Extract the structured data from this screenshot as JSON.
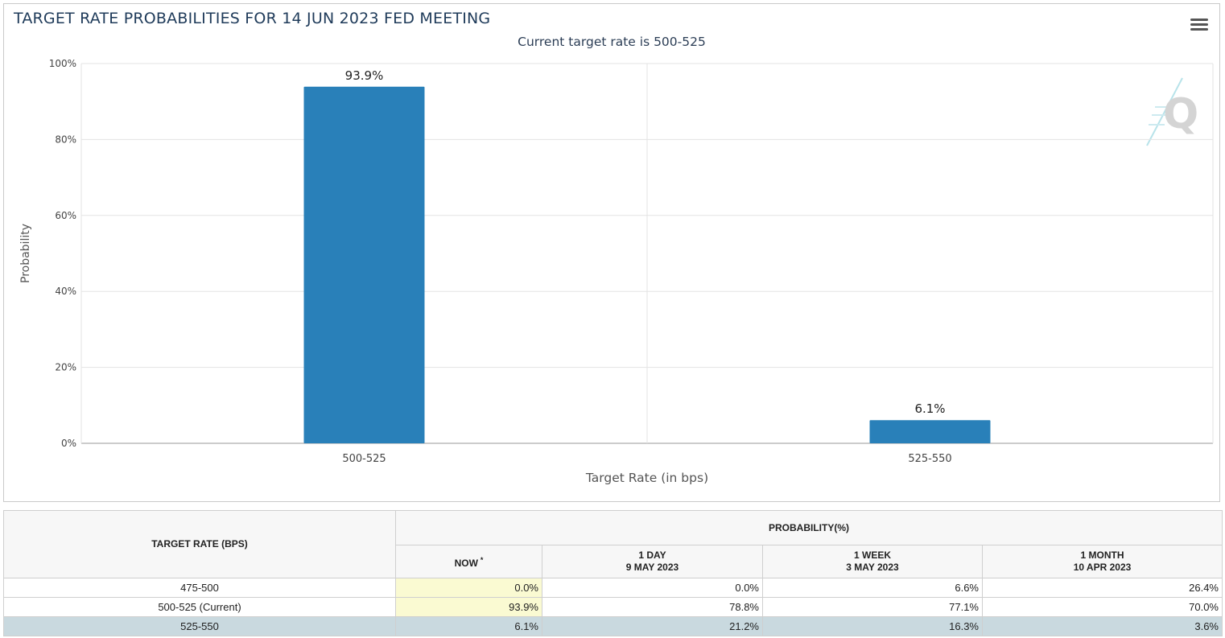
{
  "chart": {
    "title": "TARGET RATE PROBABILITIES FOR 14 JUN 2023 FED MEETING",
    "subtitle": "Current target rate is 500-525",
    "menu_icon": "hamburger-menu-icon",
    "watermark_icon": "q-logo-icon"
  },
  "chart_data": {
    "type": "bar",
    "title": "TARGET RATE PROBABILITIES FOR 14 JUN 2023 FED MEETING",
    "subtitle": "Current target rate is 500-525",
    "categories": [
      "500-525",
      "525-550"
    ],
    "values": [
      93.9,
      6.1
    ],
    "data_labels": [
      "93.9%",
      "6.1%"
    ],
    "xlabel": "Target Rate (in bps)",
    "ylabel": "Probability",
    "ylim": [
      0,
      100
    ],
    "y_ticks": [
      "0%",
      "20%",
      "40%",
      "60%",
      "80%",
      "100%"
    ],
    "y_tick_values": [
      0,
      20,
      40,
      60,
      80,
      100
    ],
    "grid": true,
    "bar_color": "#2980b9"
  },
  "table": {
    "target_rate_header": "TARGET RATE (BPS)",
    "probability_header": "PROBABILITY(%)",
    "now_label": "NOW",
    "now_marker": "*",
    "columns": [
      {
        "line1": "1 DAY",
        "line2": "9 MAY 2023"
      },
      {
        "line1": "1 WEEK",
        "line2": "3 MAY 2023"
      },
      {
        "line1": "1 MONTH",
        "line2": "10 APR 2023"
      }
    ],
    "rows": [
      {
        "rate": "475-500",
        "now": "0.0%",
        "day": "0.0%",
        "week": "6.6%",
        "month": "26.4%"
      },
      {
        "rate": "500-525 (Current)",
        "now": "93.9%",
        "day": "78.8%",
        "week": "77.1%",
        "month": "70.0%"
      },
      {
        "rate": "525-550",
        "now": "6.1%",
        "day": "21.2%",
        "week": "16.3%",
        "month": "3.6%"
      }
    ]
  }
}
